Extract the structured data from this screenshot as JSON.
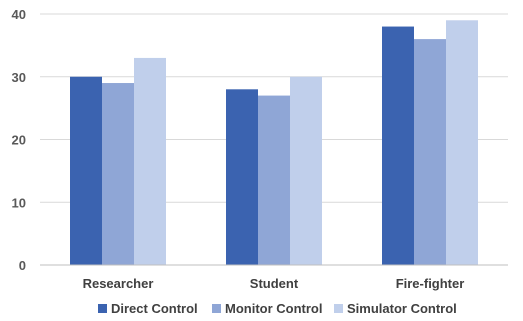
{
  "chart_data": {
    "type": "bar",
    "title": "",
    "xlabel": "",
    "ylabel": "",
    "categories": [
      "Researcher",
      "Student",
      "Fire-fighter"
    ],
    "series": [
      {
        "name": "Direct Control",
        "color": "#3b63b0",
        "values": [
          30,
          28,
          38
        ]
      },
      {
        "name": "Monitor Control",
        "color": "#8fa6d6",
        "values": [
          29,
          27,
          36
        ]
      },
      {
        "name": "Simulator Control",
        "color": "#c0cfeb",
        "values": [
          33,
          30,
          39
        ]
      }
    ],
    "ylim": [
      0,
      40
    ],
    "yticks": [
      0,
      10,
      20,
      30,
      40
    ],
    "grid": true,
    "legend_position": "bottom"
  },
  "colors": {
    "gridline": "#d9d9d9",
    "axis": "#bfbfbf"
  }
}
